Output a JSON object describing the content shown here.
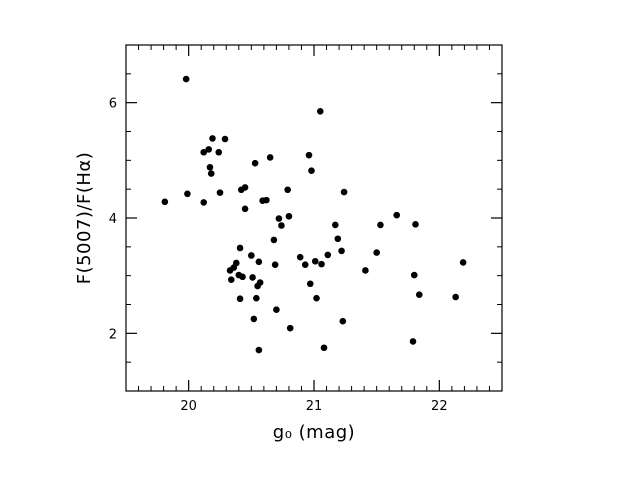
{
  "chart_data": {
    "type": "scatter",
    "title": "",
    "xlabel": "g₀  (mag)",
    "ylabel": "F(5007)/F(Hα)",
    "xlim": [
      19.5,
      22.5
    ],
    "ylim": [
      1.0,
      7.0
    ],
    "x_ticks": [
      20,
      21,
      22
    ],
    "y_ticks": [
      2,
      4,
      6
    ],
    "x_minor_step": 0.1,
    "y_minor_step": 0.5,
    "grid": false,
    "legend": "none",
    "marker_color": "#000000",
    "series": [
      {
        "points": [
          [
            19.81,
            4.28
          ],
          [
            19.98,
            6.41
          ],
          [
            19.99,
            4.42
          ],
          [
            20.12,
            4.27
          ],
          [
            20.12,
            5.14
          ],
          [
            20.16,
            5.19
          ],
          [
            20.17,
            4.88
          ],
          [
            20.18,
            4.77
          ],
          [
            20.19,
            5.38
          ],
          [
            20.24,
            5.14
          ],
          [
            20.25,
            4.44
          ],
          [
            20.29,
            5.37
          ],
          [
            20.33,
            3.09
          ],
          [
            20.34,
            2.93
          ],
          [
            20.36,
            3.14
          ],
          [
            20.38,
            3.22
          ],
          [
            20.4,
            3.01
          ],
          [
            20.41,
            3.48
          ],
          [
            20.41,
            2.6
          ],
          [
            20.42,
            4.49
          ],
          [
            20.43,
            2.98
          ],
          [
            20.45,
            4.16
          ],
          [
            20.45,
            4.53
          ],
          [
            20.5,
            3.35
          ],
          [
            20.51,
            2.97
          ],
          [
            20.52,
            2.25
          ],
          [
            20.53,
            4.95
          ],
          [
            20.54,
            2.61
          ],
          [
            20.55,
            2.82
          ],
          [
            20.56,
            3.24
          ],
          [
            20.56,
            1.71
          ],
          [
            20.57,
            2.88
          ],
          [
            20.59,
            4.3
          ],
          [
            20.62,
            4.31
          ],
          [
            20.65,
            5.05
          ],
          [
            20.68,
            3.62
          ],
          [
            20.69,
            3.19
          ],
          [
            20.7,
            2.41
          ],
          [
            20.72,
            3.99
          ],
          [
            20.74,
            3.87
          ],
          [
            20.79,
            4.49
          ],
          [
            20.8,
            4.03
          ],
          [
            20.81,
            2.09
          ],
          [
            20.89,
            3.32
          ],
          [
            20.93,
            3.19
          ],
          [
            20.96,
            5.09
          ],
          [
            20.97,
            2.86
          ],
          [
            20.98,
            4.82
          ],
          [
            21.01,
            3.25
          ],
          [
            21.02,
            2.61
          ],
          [
            21.05,
            5.85
          ],
          [
            21.06,
            3.2
          ],
          [
            21.08,
            1.75
          ],
          [
            21.11,
            3.36
          ],
          [
            21.17,
            3.88
          ],
          [
            21.19,
            3.64
          ],
          [
            21.22,
            3.43
          ],
          [
            21.23,
            2.21
          ],
          [
            21.24,
            4.45
          ],
          [
            21.41,
            3.09
          ],
          [
            21.5,
            3.4
          ],
          [
            21.53,
            3.88
          ],
          [
            21.66,
            4.05
          ],
          [
            21.79,
            1.86
          ],
          [
            21.8,
            3.01
          ],
          [
            21.81,
            3.89
          ],
          [
            21.84,
            2.67
          ],
          [
            22.13,
            2.63
          ],
          [
            22.19,
            3.23
          ]
        ]
      }
    ]
  }
}
